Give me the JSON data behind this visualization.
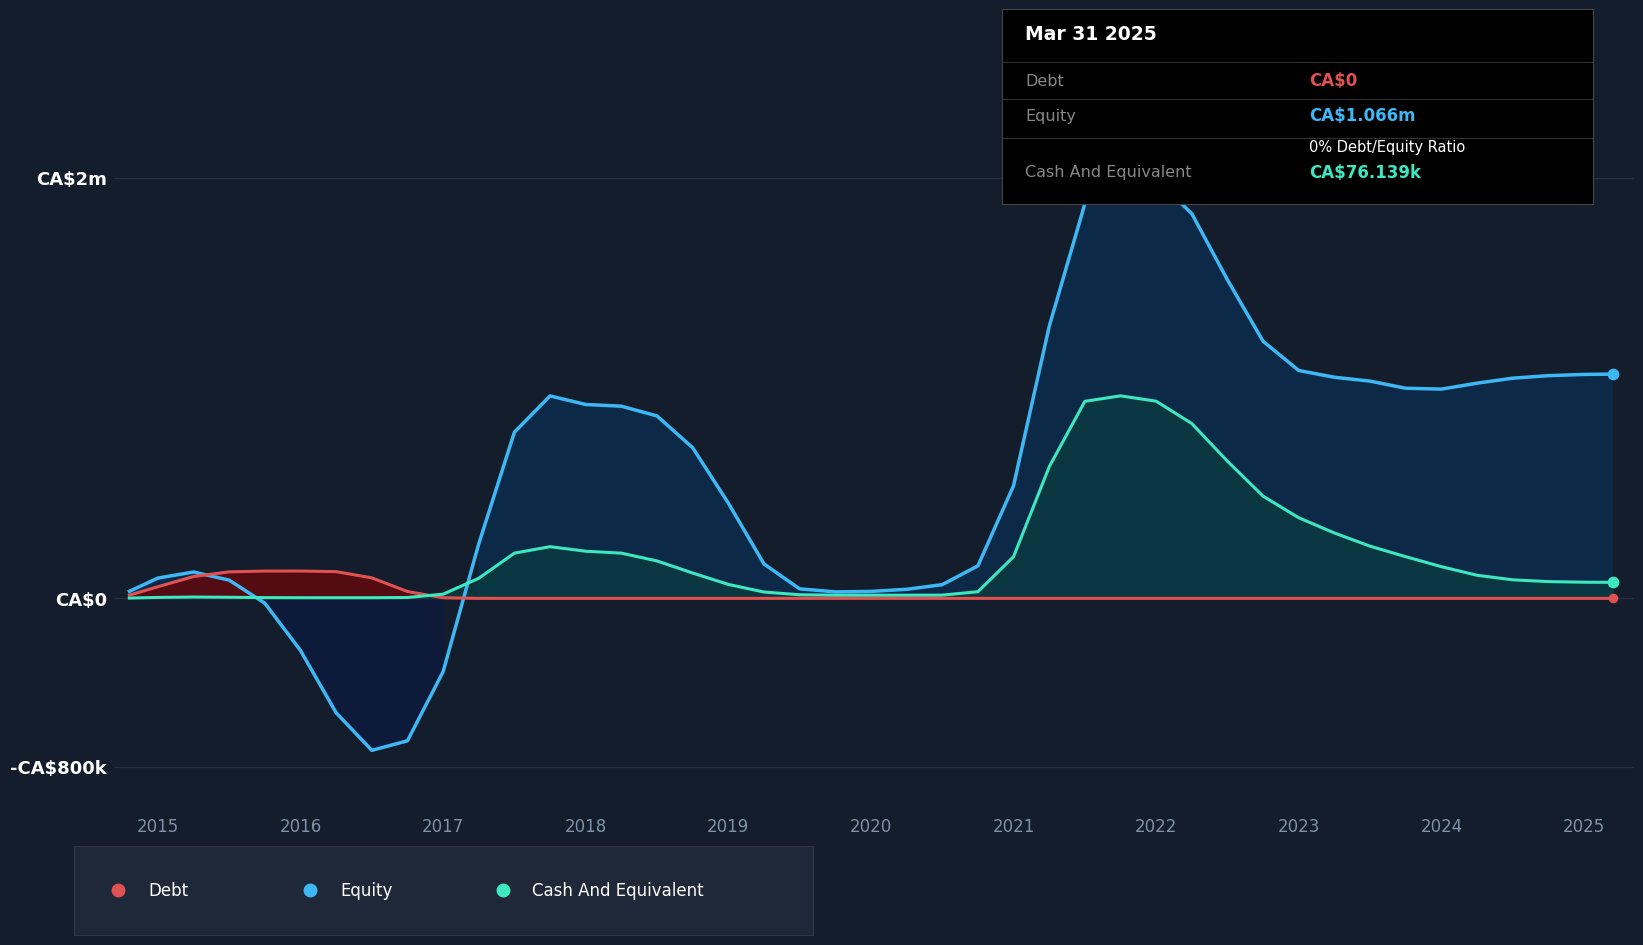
{
  "bg_color": "#141d2b",
  "plot_bg_color": "#141d2b",
  "grid_color": "#263044",
  "debt_color": "#e05252",
  "equity_color": "#3db8f5",
  "cash_color": "#3de8c0",
  "ylim_min": -1000000,
  "ylim_max": 2600000,
  "yticks": [
    -800000,
    0,
    2000000
  ],
  "ytick_labels": [
    "-CA$800k",
    "CA$0",
    "CA$2m"
  ],
  "years": [
    2015,
    2016,
    2017,
    2018,
    2019,
    2020,
    2021,
    2022,
    2023,
    2024,
    2025
  ],
  "legend_items": [
    "Debt",
    "Equity",
    "Cash And Equivalent"
  ],
  "title_text": "Mar 31 2025",
  "tooltip_debt_label": "Debt",
  "tooltip_debt_value": "CA$0",
  "tooltip_equity_label": "Equity",
  "tooltip_equity_value": "CA$1.066m",
  "tooltip_ratio": "0% Debt/Equity Ratio",
  "tooltip_cash_label": "Cash And Equivalent",
  "tooltip_cash_value": "CA$76.139k",
  "dates": [
    2014.8,
    2015.0,
    2015.25,
    2015.5,
    2015.75,
    2016.0,
    2016.25,
    2016.5,
    2016.75,
    2017.0,
    2017.25,
    2017.5,
    2017.75,
    2018.0,
    2018.25,
    2018.5,
    2018.75,
    2019.0,
    2019.25,
    2019.5,
    2019.75,
    2020.0,
    2020.25,
    2020.5,
    2020.75,
    2021.0,
    2021.25,
    2021.5,
    2021.75,
    2022.0,
    2022.25,
    2022.5,
    2022.75,
    2023.0,
    2023.25,
    2023.5,
    2023.75,
    2024.0,
    2024.25,
    2024.5,
    2024.75,
    2025.0,
    2025.2
  ],
  "equity_values": [
    0,
    120000,
    150000,
    100000,
    20000,
    -200000,
    -600000,
    -800000,
    -750000,
    -500000,
    300000,
    950000,
    1050000,
    850000,
    950000,
    900000,
    750000,
    500000,
    50000,
    30000,
    30000,
    30000,
    40000,
    60000,
    80000,
    300000,
    1400000,
    2100000,
    2000000,
    2050000,
    1900000,
    1500000,
    1150000,
    1050000,
    1050000,
    1050000,
    980000,
    980000,
    1030000,
    1050000,
    1060000,
    1066000,
    1066000
  ],
  "debt_values": [
    0,
    50000,
    120000,
    130000,
    130000,
    130000,
    130000,
    130000,
    0,
    0,
    0,
    0,
    0,
    0,
    0,
    0,
    0,
    0,
    0,
    0,
    0,
    0,
    0,
    0,
    0,
    0,
    0,
    0,
    0,
    0,
    0,
    0,
    0,
    0,
    0,
    0,
    0,
    0,
    0,
    0,
    0,
    0,
    0
  ],
  "cash_values": [
    0,
    5000,
    8000,
    5000,
    3000,
    3000,
    3000,
    3000,
    3000,
    3000,
    50000,
    280000,
    260000,
    200000,
    240000,
    180000,
    120000,
    60000,
    20000,
    15000,
    15000,
    15000,
    15000,
    15000,
    15000,
    20000,
    700000,
    1100000,
    900000,
    1000000,
    850000,
    650000,
    450000,
    380000,
    310000,
    240000,
    200000,
    150000,
    100000,
    85000,
    78000,
    76139,
    76139
  ]
}
